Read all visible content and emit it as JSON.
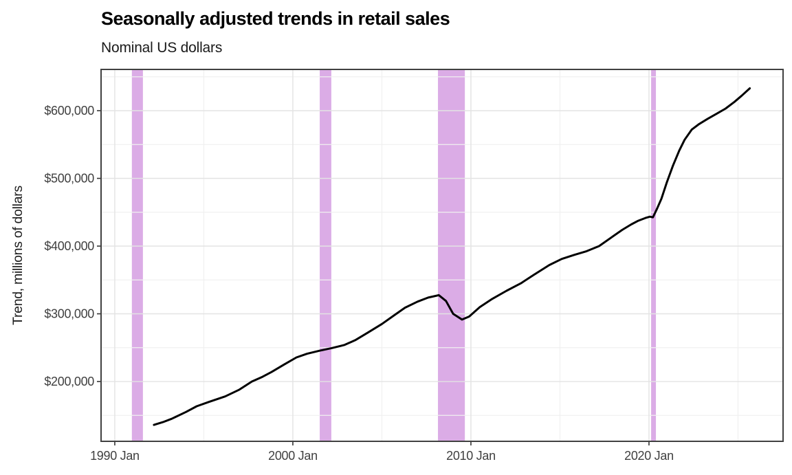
{
  "header": {
    "title": "Seasonally adjusted trends in retail sales",
    "subtitle": "Nominal US dollars"
  },
  "chart_data": {
    "type": "line",
    "title": "Seasonally adjusted trends in retail sales",
    "subtitle": "Nominal US dollars",
    "xlabel": "",
    "ylabel": "Trend, millions of dollars",
    "legend": "none",
    "grid": "major+minor",
    "xlim": [
      1989.23,
      2027.53
    ],
    "ylim": [
      111700,
      660900
    ],
    "x_ticks": [
      {
        "x": 1990,
        "label": "1990 Jan"
      },
      {
        "x": 2000,
        "label": "2000 Jan"
      },
      {
        "x": 2010,
        "label": "2010 Jan"
      },
      {
        "x": 2020,
        "label": "2020 Jan"
      }
    ],
    "y_ticks": [
      {
        "v": 200000,
        "label": "$200,000"
      },
      {
        "v": 300000,
        "label": "$300,000"
      },
      {
        "v": 400000,
        "label": "$400,000"
      },
      {
        "v": 500000,
        "label": "$500,000"
      },
      {
        "v": 600000,
        "label": "$600,000"
      }
    ],
    "x_minor": [
      1995,
      2005,
      2015,
      2025
    ],
    "y_minor": [
      150000,
      250000,
      350000,
      450000,
      550000,
      650000
    ],
    "recession_bands": [
      {
        "name": "recession-1990-91",
        "start": 1990.96,
        "end": 1991.58
      },
      {
        "name": "recession-2001",
        "start": 2001.51,
        "end": 2002.16
      },
      {
        "name": "recession-2008-09",
        "start": 2008.15,
        "end": 2009.66
      },
      {
        "name": "recession-2020",
        "start": 2020.12,
        "end": 2020.39
      }
    ],
    "series": [
      {
        "name": "retail-sales-trend",
        "color": "#000000",
        "points": [
          [
            1992.2,
            136000
          ],
          [
            1992.7,
            140000
          ],
          [
            1993.2,
            145000
          ],
          [
            1994.0,
            155000
          ],
          [
            1994.6,
            163500
          ],
          [
            1995.3,
            170000
          ],
          [
            1996.2,
            178000
          ],
          [
            1997.0,
            188000
          ],
          [
            1997.7,
            200000
          ],
          [
            1998.3,
            207000
          ],
          [
            1998.8,
            214000
          ],
          [
            1999.5,
            225000
          ],
          [
            2000.2,
            235500
          ],
          [
            2000.8,
            241000
          ],
          [
            2001.5,
            245500
          ],
          [
            2002.2,
            249500
          ],
          [
            2002.9,
            254000
          ],
          [
            2003.5,
            261000
          ],
          [
            2004.2,
            272000
          ],
          [
            2005.0,
            285000
          ],
          [
            2005.7,
            298000
          ],
          [
            2006.3,
            309000
          ],
          [
            2007.0,
            318000
          ],
          [
            2007.6,
            324000
          ],
          [
            2008.2,
            327500
          ],
          [
            2008.6,
            319000
          ],
          [
            2009.0,
            300000
          ],
          [
            2009.5,
            291500
          ],
          [
            2009.9,
            296000
          ],
          [
            2010.5,
            310000
          ],
          [
            2011.2,
            322000
          ],
          [
            2012.0,
            334000
          ],
          [
            2012.8,
            345000
          ],
          [
            2013.5,
            357000
          ],
          [
            2014.4,
            372000
          ],
          [
            2015.1,
            381000
          ],
          [
            2015.8,
            387000
          ],
          [
            2016.5,
            392500
          ],
          [
            2017.2,
            400000
          ],
          [
            2017.9,
            413000
          ],
          [
            2018.5,
            424000
          ],
          [
            2019.0,
            432000
          ],
          [
            2019.4,
            437500
          ],
          [
            2019.8,
            441500
          ],
          [
            2020.05,
            443500
          ],
          [
            2020.22,
            442500
          ],
          [
            2020.45,
            455000
          ],
          [
            2020.7,
            470000
          ],
          [
            2021.0,
            494000
          ],
          [
            2021.35,
            519000
          ],
          [
            2021.7,
            541000
          ],
          [
            2022.0,
            557000
          ],
          [
            2022.4,
            572000
          ],
          [
            2022.8,
            580000
          ],
          [
            2023.3,
            588000
          ],
          [
            2023.8,
            595500
          ],
          [
            2024.3,
            603000
          ],
          [
            2024.8,
            613000
          ],
          [
            2025.2,
            622000
          ],
          [
            2025.66,
            633000
          ]
        ]
      }
    ],
    "colors": {
      "band": "#DBACE6",
      "grid_major": "#E3E3E3",
      "grid_minor": "#F0F0F0",
      "line": "#000000",
      "panel_border": "#404040",
      "tick": "#333333",
      "tick_label": "#404040",
      "title": "#000000"
    }
  }
}
